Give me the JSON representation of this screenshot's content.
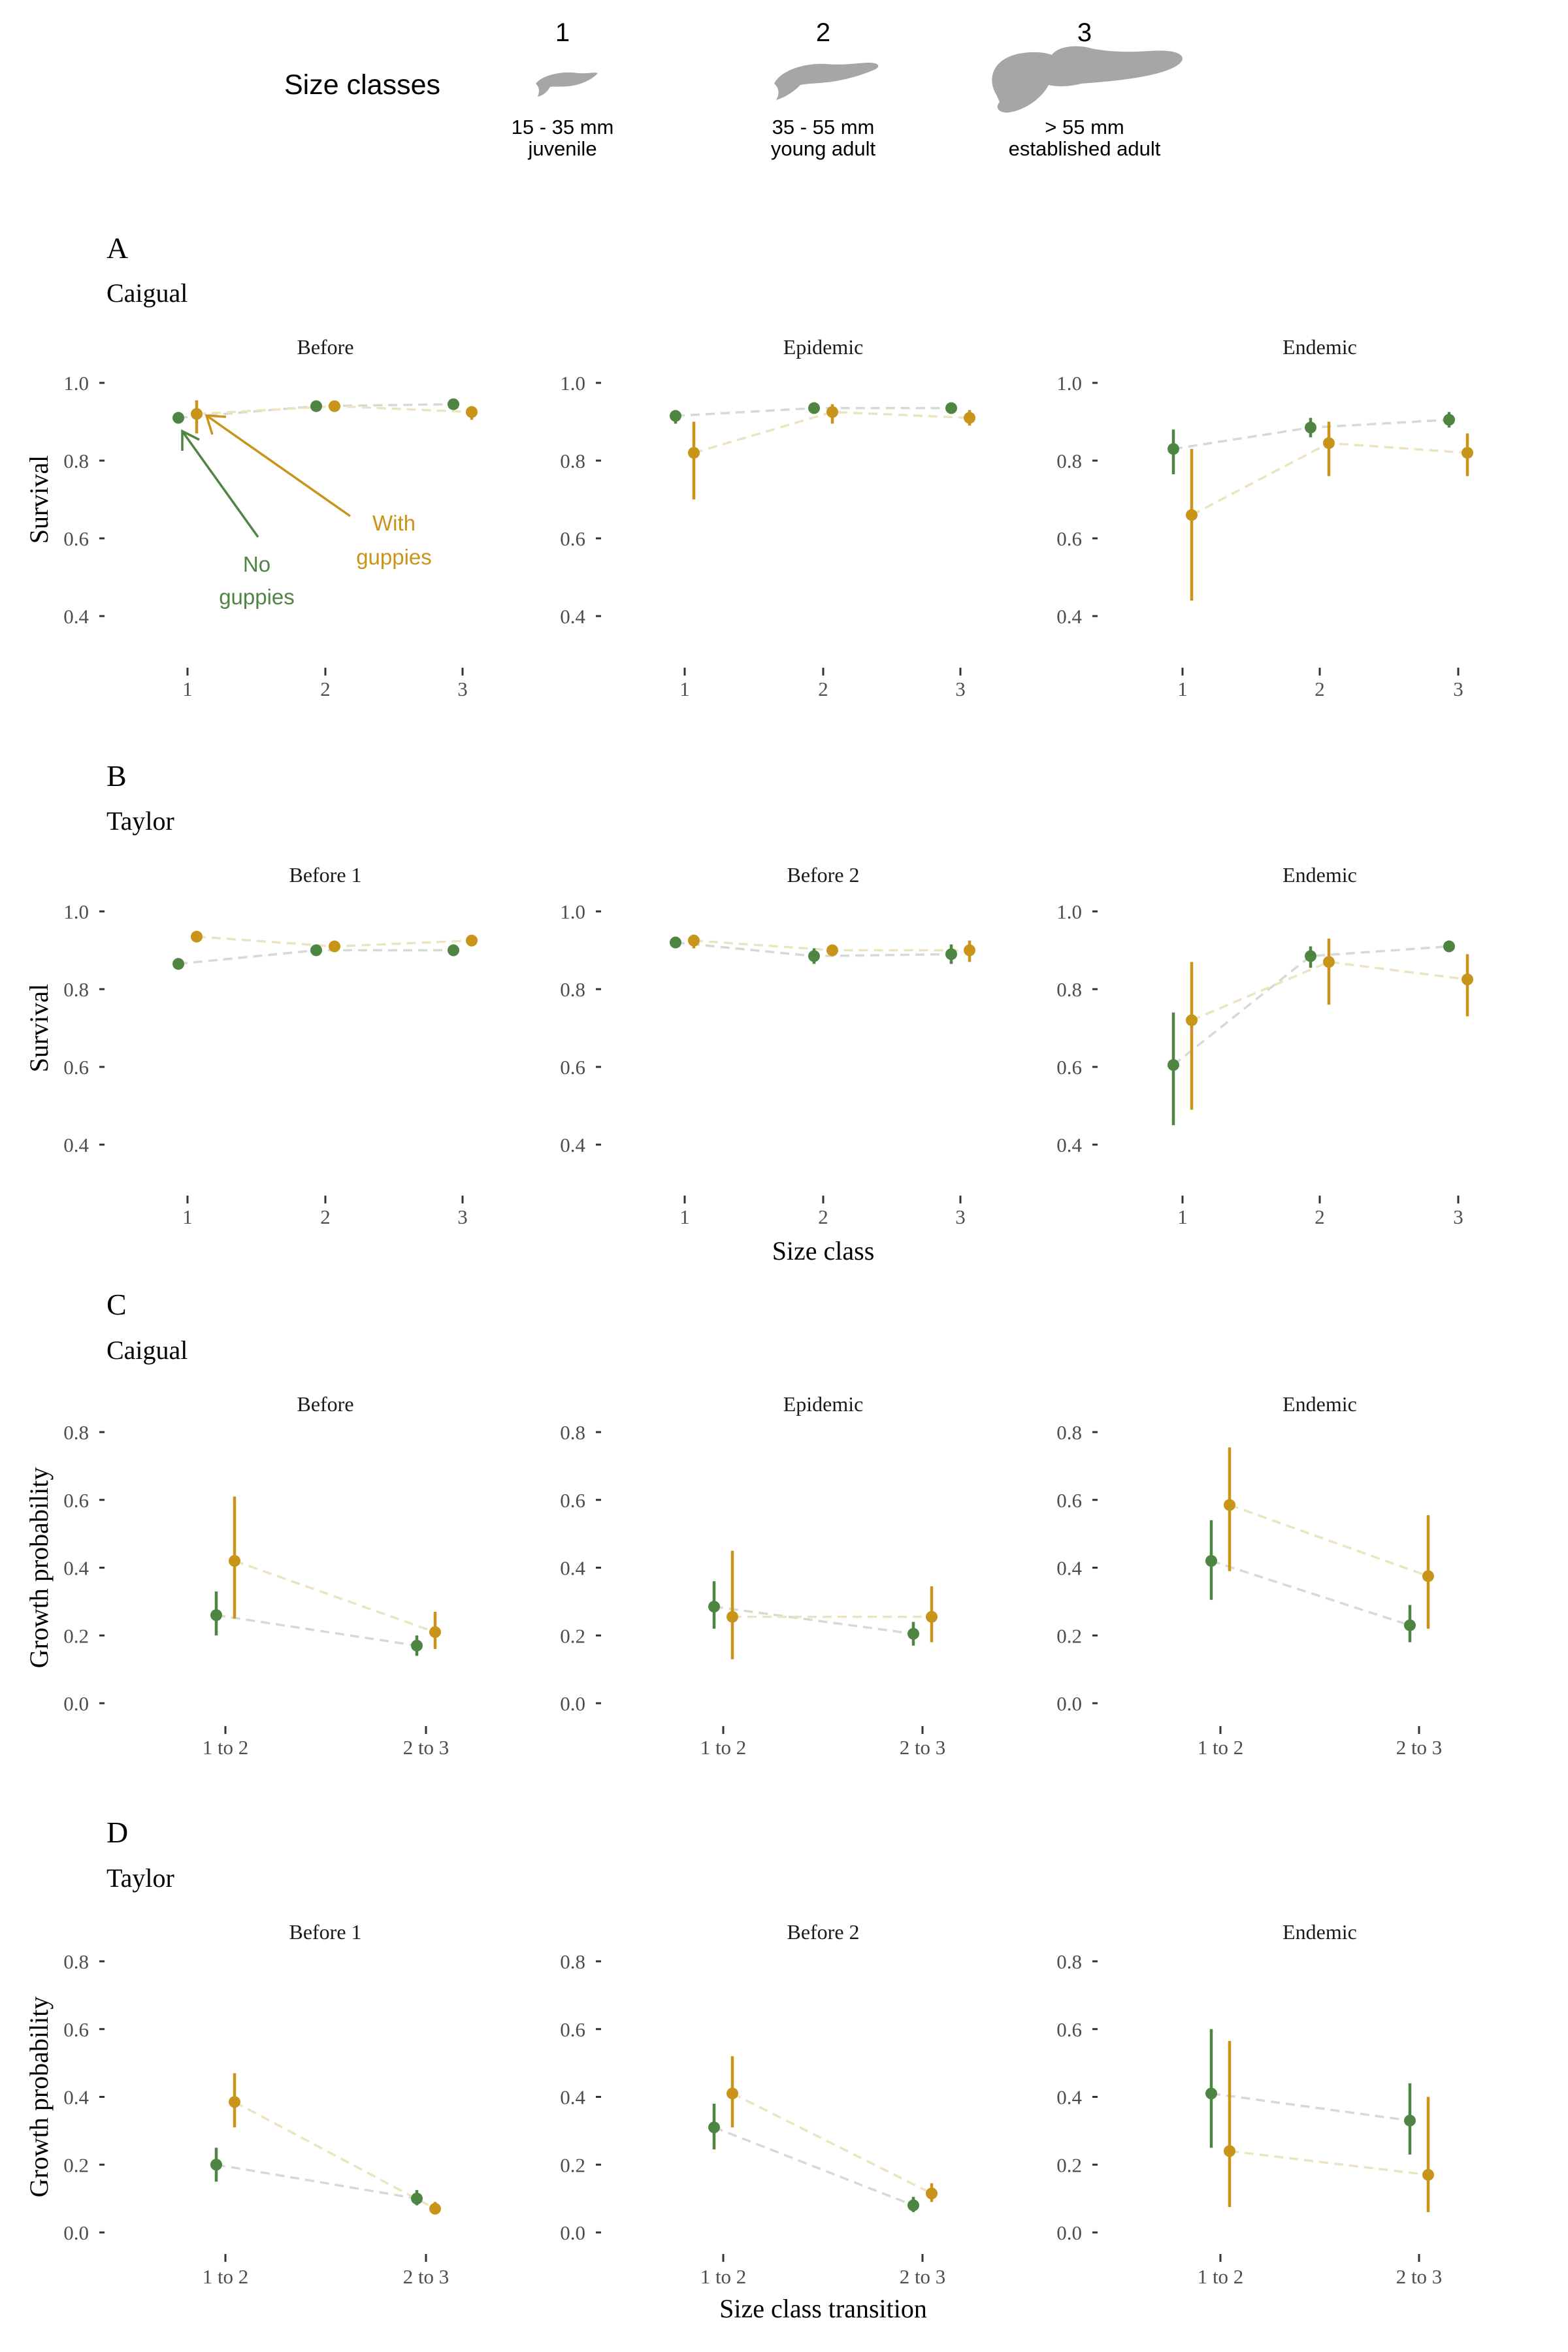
{
  "legend": {
    "title": "Size classes",
    "classes": [
      {
        "number": "1",
        "range": "15 - 35 mm",
        "stage": "juvenile"
      },
      {
        "number": "2",
        "range": "35 - 55 mm",
        "stage": "young adult"
      },
      {
        "number": "3",
        "range": "> 55 mm",
        "stage": "established adult"
      }
    ],
    "fish_color": "#a6a6a6"
  },
  "annotations": {
    "no_guppies_line1": "No",
    "no_guppies_line2": "guppies",
    "with_guppies_line1": "With",
    "with_guppies_line2": "guppies"
  },
  "colors": {
    "no_guppies": "#4e8542",
    "with_guppies": "#c8941a",
    "no_guppies_dash": "#d7d9d4",
    "with_guppies_dash": "#ece4c0",
    "axis_text": "#4d4d4d"
  },
  "shared_labels": {
    "size_class": "Size class",
    "size_class_transition": "Size class transition"
  },
  "chart_data": [
    {
      "type": "line",
      "panel_letter": "A",
      "site": "Caigual",
      "ylabel": "Survival",
      "ylim": [
        0.3,
        1.02
      ],
      "yticks": [
        "0.4",
        "0.6",
        "0.8",
        "1.0"
      ],
      "categories": [
        "1",
        "2",
        "3"
      ],
      "error_bars": true,
      "grid": false,
      "facets": [
        {
          "title": "Before",
          "series": [
            {
              "values": [
                0.91,
                0.94,
                0.945
              ],
              "lower": [
                0.895,
                0.932,
                0.935
              ],
              "upper": [
                0.925,
                0.948,
                0.955
              ]
            },
            {
              "values": [
                0.92,
                0.94,
                0.925
              ],
              "lower": [
                0.87,
                0.93,
                0.905
              ],
              "upper": [
                0.955,
                0.95,
                0.94
              ]
            }
          ]
        },
        {
          "title": "Epidemic",
          "series": [
            {
              "values": [
                0.915,
                0.935,
                0.935
              ],
              "lower": [
                0.895,
                0.925,
                0.925
              ],
              "upper": [
                0.93,
                0.945,
                0.945
              ]
            },
            {
              "values": [
                0.82,
                0.925,
                0.91
              ],
              "lower": [
                0.7,
                0.895,
                0.89
              ],
              "upper": [
                0.9,
                0.945,
                0.93
              ]
            }
          ]
        },
        {
          "title": "Endemic",
          "series": [
            {
              "values": [
                0.83,
                0.885,
                0.905
              ],
              "lower": [
                0.765,
                0.86,
                0.885
              ],
              "upper": [
                0.88,
                0.91,
                0.925
              ]
            },
            {
              "values": [
                0.66,
                0.845,
                0.82
              ],
              "lower": [
                0.44,
                0.76,
                0.76
              ],
              "upper": [
                0.83,
                0.9,
                0.87
              ]
            }
          ]
        }
      ]
    },
    {
      "type": "line",
      "panel_letter": "B",
      "site": "Taylor",
      "ylabel": "Survival",
      "xlabel": "Size class",
      "ylim": [
        0.3,
        1.02
      ],
      "yticks": [
        "0.4",
        "0.6",
        "0.8",
        "1.0"
      ],
      "categories": [
        "1",
        "2",
        "3"
      ],
      "error_bars": true,
      "grid": false,
      "facets": [
        {
          "title": "Before 1",
          "series": [
            {
              "values": [
                0.865,
                0.9,
                0.9
              ],
              "lower": [
                0.85,
                0.89,
                0.885
              ],
              "upper": [
                0.88,
                0.91,
                0.915
              ]
            },
            {
              "values": [
                0.935,
                0.91,
                0.925
              ],
              "lower": [
                0.93,
                0.905,
                0.91
              ],
              "upper": [
                0.94,
                0.915,
                0.935
              ]
            }
          ]
        },
        {
          "title": "Before 2",
          "series": [
            {
              "values": [
                0.92,
                0.885,
                0.89
              ],
              "lower": [
                0.905,
                0.865,
                0.865
              ],
              "upper": [
                0.935,
                0.905,
                0.915
              ]
            },
            {
              "values": [
                0.925,
                0.9,
                0.9
              ],
              "lower": [
                0.905,
                0.89,
                0.87
              ],
              "upper": [
                0.94,
                0.91,
                0.925
              ]
            }
          ]
        },
        {
          "title": "Endemic",
          "series": [
            {
              "values": [
                0.605,
                0.885,
                0.91
              ],
              "lower": [
                0.45,
                0.855,
                0.895
              ],
              "upper": [
                0.74,
                0.91,
                0.925
              ]
            },
            {
              "values": [
                0.72,
                0.87,
                0.825
              ],
              "lower": [
                0.49,
                0.76,
                0.73
              ],
              "upper": [
                0.87,
                0.93,
                0.89
              ]
            }
          ]
        }
      ]
    },
    {
      "type": "line",
      "panel_letter": "C",
      "site": "Caigual",
      "ylabel": "Growth probability",
      "ylim": [
        0,
        0.82
      ],
      "yticks": [
        "0.0",
        "0.2",
        "0.4",
        "0.6",
        "0.8"
      ],
      "categories": [
        "1 to 2",
        "2 to 3"
      ],
      "error_bars": true,
      "grid": false,
      "facets": [
        {
          "title": "Before",
          "series": [
            {
              "values": [
                0.26,
                0.17
              ],
              "lower": [
                0.2,
                0.14
              ],
              "upper": [
                0.33,
                0.2
              ]
            },
            {
              "values": [
                0.42,
                0.21
              ],
              "lower": [
                0.25,
                0.16
              ],
              "upper": [
                0.61,
                0.27
              ]
            }
          ]
        },
        {
          "title": "Epidemic",
          "series": [
            {
              "values": [
                0.285,
                0.205
              ],
              "lower": [
                0.22,
                0.17
              ],
              "upper": [
                0.36,
                0.24
              ]
            },
            {
              "values": [
                0.255,
                0.255
              ],
              "lower": [
                0.13,
                0.18
              ],
              "upper": [
                0.45,
                0.345
              ]
            }
          ]
        },
        {
          "title": "Endemic",
          "series": [
            {
              "values": [
                0.42,
                0.23
              ],
              "lower": [
                0.305,
                0.18
              ],
              "upper": [
                0.54,
                0.29
              ]
            },
            {
              "values": [
                0.585,
                0.375
              ],
              "lower": [
                0.39,
                0.22
              ],
              "upper": [
                0.755,
                0.555
              ]
            }
          ]
        }
      ]
    },
    {
      "type": "line",
      "panel_letter": "D",
      "site": "Taylor",
      "ylabel": "Growth probability",
      "xlabel": "Size class transition",
      "ylim": [
        0,
        0.82
      ],
      "yticks": [
        "0.0",
        "0.2",
        "0.4",
        "0.6",
        "0.8"
      ],
      "categories": [
        "1 to 2",
        "2 to 3"
      ],
      "error_bars": true,
      "grid": false,
      "facets": [
        {
          "title": "Before 1",
          "series": [
            {
              "values": [
                0.2,
                0.1
              ],
              "lower": [
                0.15,
                0.08
              ],
              "upper": [
                0.25,
                0.125
              ]
            },
            {
              "values": [
                0.385,
                0.07
              ],
              "lower": [
                0.31,
                0.055
              ],
              "upper": [
                0.47,
                0.09
              ]
            }
          ]
        },
        {
          "title": "Before 2",
          "series": [
            {
              "values": [
                0.31,
                0.08
              ],
              "lower": [
                0.245,
                0.06
              ],
              "upper": [
                0.38,
                0.105
              ]
            },
            {
              "values": [
                0.41,
                0.115
              ],
              "lower": [
                0.31,
                0.09
              ],
              "upper": [
                0.52,
                0.145
              ]
            }
          ]
        },
        {
          "title": "Endemic",
          "series": [
            {
              "values": [
                0.41,
                0.33
              ],
              "lower": [
                0.25,
                0.23
              ],
              "upper": [
                0.6,
                0.44
              ]
            },
            {
              "values": [
                0.24,
                0.17
              ],
              "lower": [
                0.075,
                0.06
              ],
              "upper": [
                0.565,
                0.4
              ]
            }
          ]
        }
      ]
    }
  ]
}
